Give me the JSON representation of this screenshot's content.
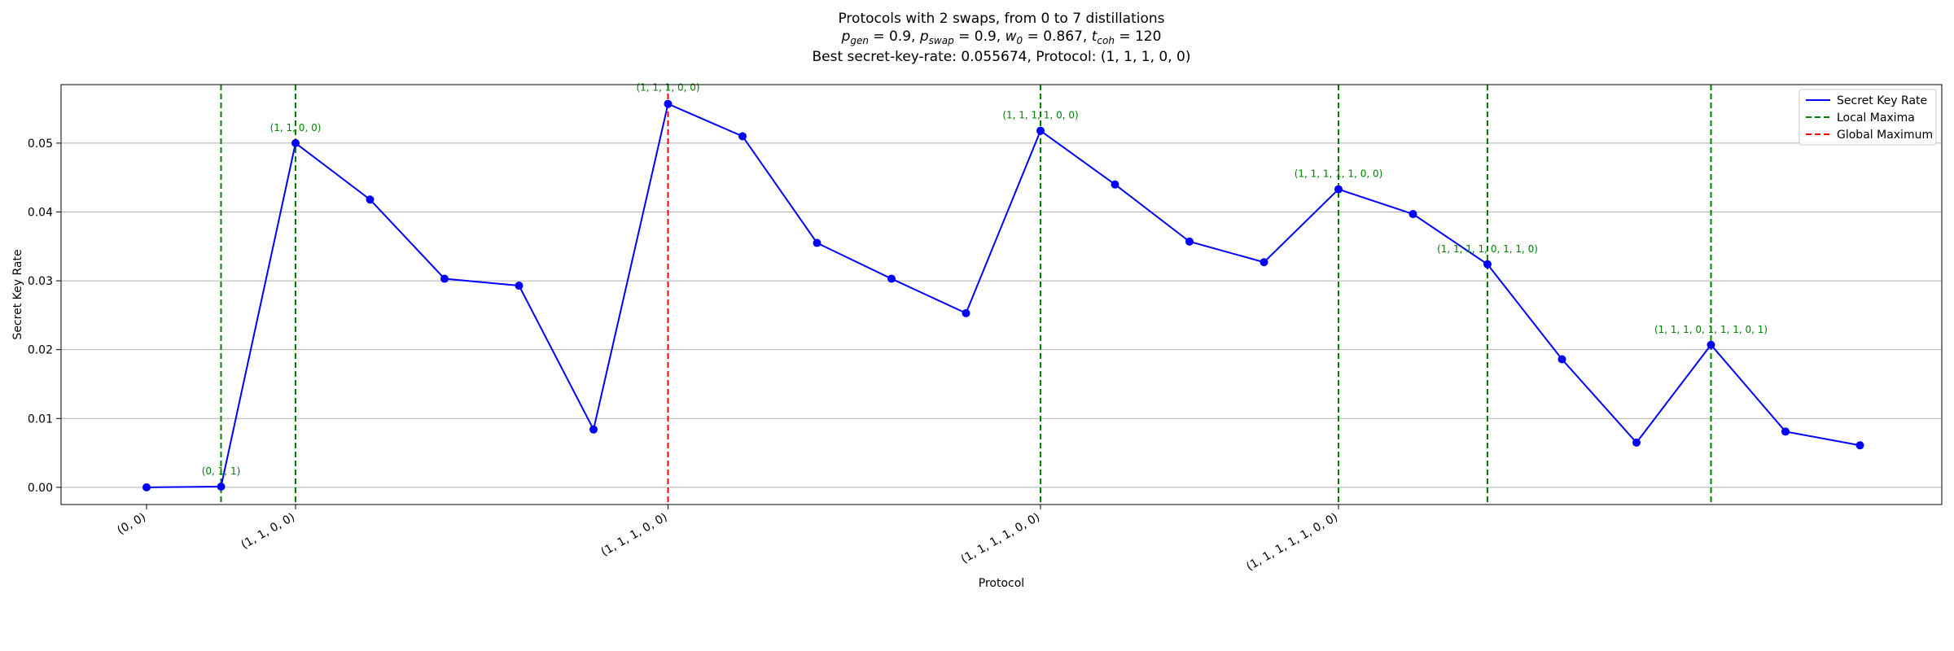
{
  "chart_data": {
    "type": "line",
    "title_lines": [
      "Protocols with 2 swaps, from 0 to 7 distillations",
      "p_gen = 0.9, p_swap = 0.9, w_0 = 0.867, t_coh = 120",
      "Best secret-key-rate: 0.055674, Protocol: (1, 1, 1, 0, 0)"
    ],
    "xlabel": "Protocol",
    "ylabel": "Secret Key Rate",
    "ylim": [
      -0.0025,
      0.0585
    ],
    "yticks": [
      "0.00",
      "0.01",
      "0.02",
      "0.03",
      "0.04",
      "0.05"
    ],
    "xtick_labels": [
      {
        "index": 0,
        "label": "(0, 0)"
      },
      {
        "index": 2,
        "label": "(1, 1, 0, 0)"
      },
      {
        "index": 7,
        "label": "(1, 1, 1, 0, 0)"
      },
      {
        "index": 12,
        "label": "(1, 1, 1, 1, 0, 0)"
      },
      {
        "index": 16,
        "label": "(1, 1, 1, 1, 1, 0, 0)"
      }
    ],
    "series": [
      {
        "name": "Secret Key Rate",
        "color": "#0000ff",
        "x": [
          0,
          1,
          2,
          3,
          4,
          5,
          6,
          7,
          8,
          9,
          10,
          11,
          12,
          13,
          14,
          15,
          16,
          17,
          18,
          19,
          20,
          21,
          22,
          23,
          24
        ],
        "values": [
          0.0,
          0.0001,
          0.05,
          0.0418,
          0.0303,
          0.0293,
          0.0084,
          0.0557,
          0.051,
          0.0355,
          0.0303,
          0.0253,
          0.0518,
          0.044,
          0.0357,
          0.0327,
          0.0433,
          0.0397,
          0.0324,
          0.0186,
          0.0065,
          0.0207,
          0.0081,
          0.0061,
          null
        ]
      }
    ],
    "local_maxima": [
      {
        "index": 1,
        "label": "(0, 1, 1)"
      },
      {
        "index": 2,
        "label": "(1, 1, 0, 0)"
      },
      {
        "index": 12,
        "label": "(1, 1, 1, 1, 0, 0)"
      },
      {
        "index": 16,
        "label": "(1, 1, 1, 1, 1, 0, 0)"
      },
      {
        "index": 18,
        "label": "(1, 1, 1, 1, 0, 1, 1, 0)"
      },
      {
        "index": 21,
        "label": "(1, 1, 1, 0, 1, 1, 1, 0, 1)"
      }
    ],
    "global_maximum": {
      "index": 7,
      "label": "(1, 1, 1, 0, 0)"
    },
    "legend": {
      "placement": "top-right",
      "entries": [
        {
          "label": "Secret Key Rate",
          "color": "#0000ff",
          "style": "solid"
        },
        {
          "label": "Local Maxima",
          "color": "#008000",
          "style": "dashed"
        },
        {
          "label": "Global Maximum",
          "color": "#ff0000",
          "style": "dashed"
        }
      ]
    },
    "grid": "y-only"
  }
}
